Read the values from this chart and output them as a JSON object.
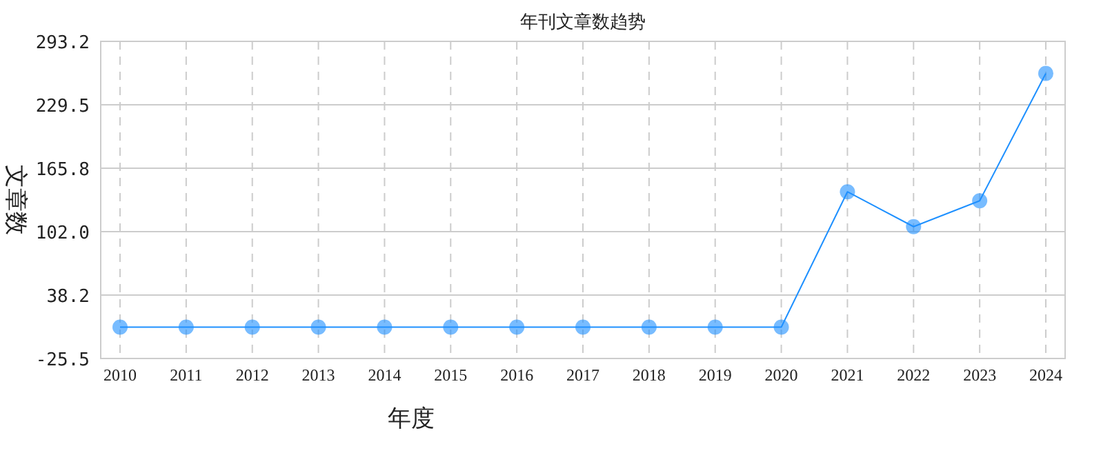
{
  "chart_data": {
    "type": "line",
    "title": "年刊文章数趋势",
    "xlabel": "年度",
    "ylabel": "文章数",
    "categories": [
      "2010",
      "2011",
      "2012",
      "2013",
      "2014",
      "2015",
      "2016",
      "2017",
      "2018",
      "2019",
      "2020",
      "2021",
      "2022",
      "2023",
      "2024"
    ],
    "series": [
      {
        "color": "#1e90ff",
        "values": [
          6,
          6,
          6,
          6,
          6,
          6,
          6,
          6,
          6,
          6,
          6,
          142,
          107,
          133,
          261
        ]
      }
    ],
    "marker": "circle",
    "line_style": "solid",
    "grid": true,
    "ylim": [
      -25.5,
      293.2
    ],
    "yticks": [
      {
        "value": -25.5,
        "label": "-25.5"
      },
      {
        "value": 38.2,
        "label": "38.2"
      },
      {
        "value": 102.0,
        "label": "102.0"
      },
      {
        "value": 165.8,
        "label": "165.8"
      },
      {
        "value": 229.5,
        "label": "229.5"
      },
      {
        "value": 293.2,
        "label": "293.2"
      }
    ]
  }
}
